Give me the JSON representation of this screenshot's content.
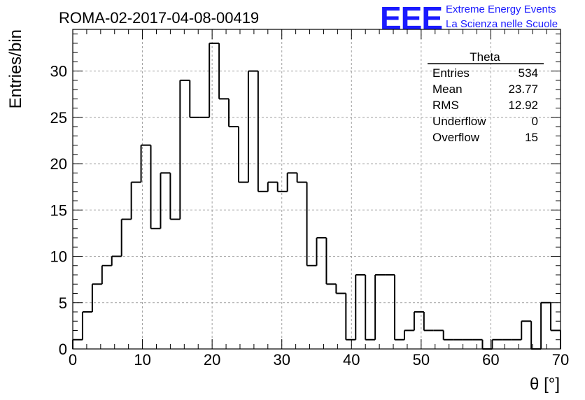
{
  "title": "ROMA-02-2017-04-08-00419",
  "logo": {
    "mark": "EEE",
    "line1": "Extreme Energy Events",
    "line2": "La Scienza nelle Scuole",
    "color": "#1a1aff"
  },
  "stats_box": {
    "title": "Theta",
    "rows": [
      {
        "label": "Entries",
        "value": "534"
      },
      {
        "label": "Mean",
        "value": "23.77"
      },
      {
        "label": "RMS",
        "value": "12.92"
      },
      {
        "label": "Underflow",
        "value": "0"
      },
      {
        "label": "Overflow",
        "value": "15"
      }
    ]
  },
  "chart_data": {
    "type": "histogram",
    "title": "ROMA-02-2017-04-08-00419",
    "xlabel": "θ [°]",
    "ylabel": "Entries/bin",
    "xlim": [
      0,
      70
    ],
    "ylim": [
      0,
      34.5
    ],
    "bin_width": 1.4,
    "x_ticks": [
      0,
      10,
      20,
      30,
      40,
      50,
      60,
      70
    ],
    "y_ticks": [
      0,
      5,
      10,
      15,
      20,
      25,
      30
    ],
    "grid": true,
    "values": [
      1,
      4,
      7,
      9,
      10,
      14,
      18,
      22,
      13,
      19,
      14,
      29,
      25,
      25,
      33,
      27,
      24,
      18,
      30,
      17,
      18,
      17,
      19,
      18,
      9,
      12,
      7,
      6,
      1,
      8,
      1,
      8,
      8,
      1,
      2,
      4,
      2,
      2,
      1,
      1,
      1,
      1,
      0,
      1,
      1,
      1,
      3,
      0,
      5,
      2
    ],
    "line_color": "#000000"
  }
}
